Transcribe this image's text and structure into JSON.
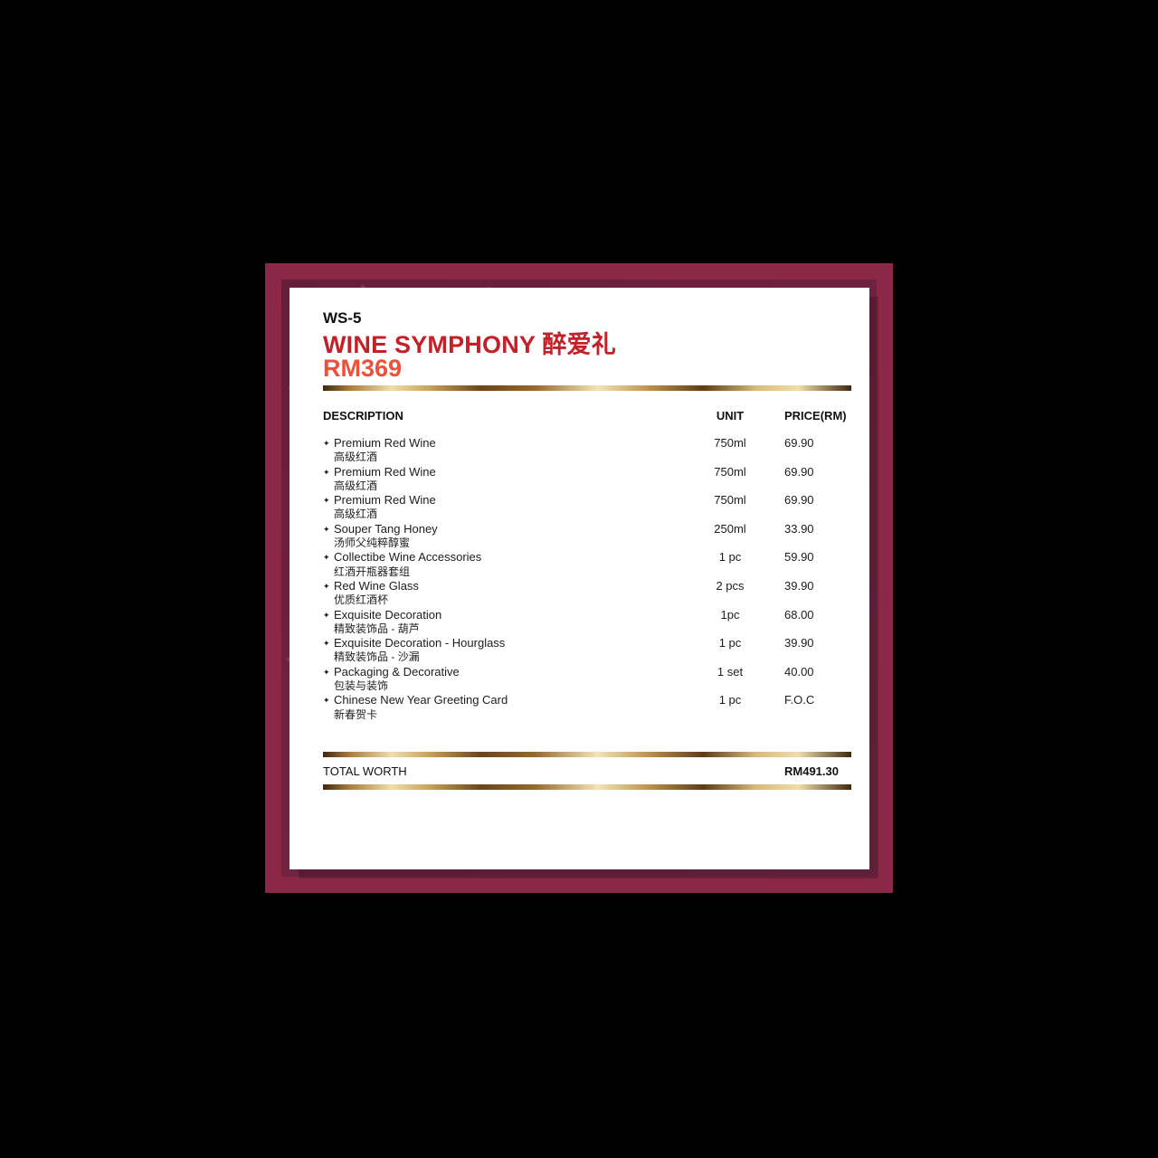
{
  "card": {
    "code": "WS-5",
    "title": "WINE SYMPHONY 醉爱礼",
    "price_big": "RM369",
    "bullet": "✦",
    "columns": {
      "description": "DESCRIPTION",
      "unit": "UNIT",
      "price": "PRICE(RM)"
    },
    "items": [
      {
        "name": "Premium Red Wine",
        "name_cn": "高级红酒",
        "unit": "750ml",
        "price": "69.90"
      },
      {
        "name": "Premium Red Wine",
        "name_cn": "高级红酒",
        "unit": "750ml",
        "price": "69.90"
      },
      {
        "name": "Premium Red Wine",
        "name_cn": "高级红酒",
        "unit": "750ml",
        "price": "69.90"
      },
      {
        "name": "Souper Tang Honey",
        "name_cn": "汤师父纯粹醇蜜",
        "unit": "250ml",
        "price": "33.90"
      },
      {
        "name": "Collectibe Wine Accessories",
        "name_cn": "红酒开瓶器套组",
        "unit": "1 pc",
        "price": "59.90"
      },
      {
        "name": "Red Wine Glass",
        "name_cn": "优质红酒杯",
        "unit": "2 pcs",
        "price": "39.90"
      },
      {
        "name": "Exquisite Decoration",
        "name_cn": "精致装饰品 - 葫芦",
        "unit": "1pc",
        "price": "68.00"
      },
      {
        "name": "Exquisite Decoration - Hourglass",
        "name_cn": "精致装饰品 - 沙漏",
        "unit": "1 pc",
        "price": "39.90"
      },
      {
        "name": "Packaging & Decorative",
        "name_cn": "包装与装饰",
        "unit": "1 set",
        "price": "40.00"
      },
      {
        "name": "Chinese New Year Greeting Card",
        "name_cn": "新春贺卡",
        "unit": "1 pc",
        "price": "F.O.C"
      }
    ],
    "total_label": "TOTAL WORTH",
    "total_value": "RM491.30",
    "colors": {
      "background": "#000000",
      "frame_border": "#8b2847",
      "frame_fill": "#702140",
      "title_red": "#c32127",
      "price_red": "#f0503a",
      "gold": "#caa35c"
    }
  }
}
